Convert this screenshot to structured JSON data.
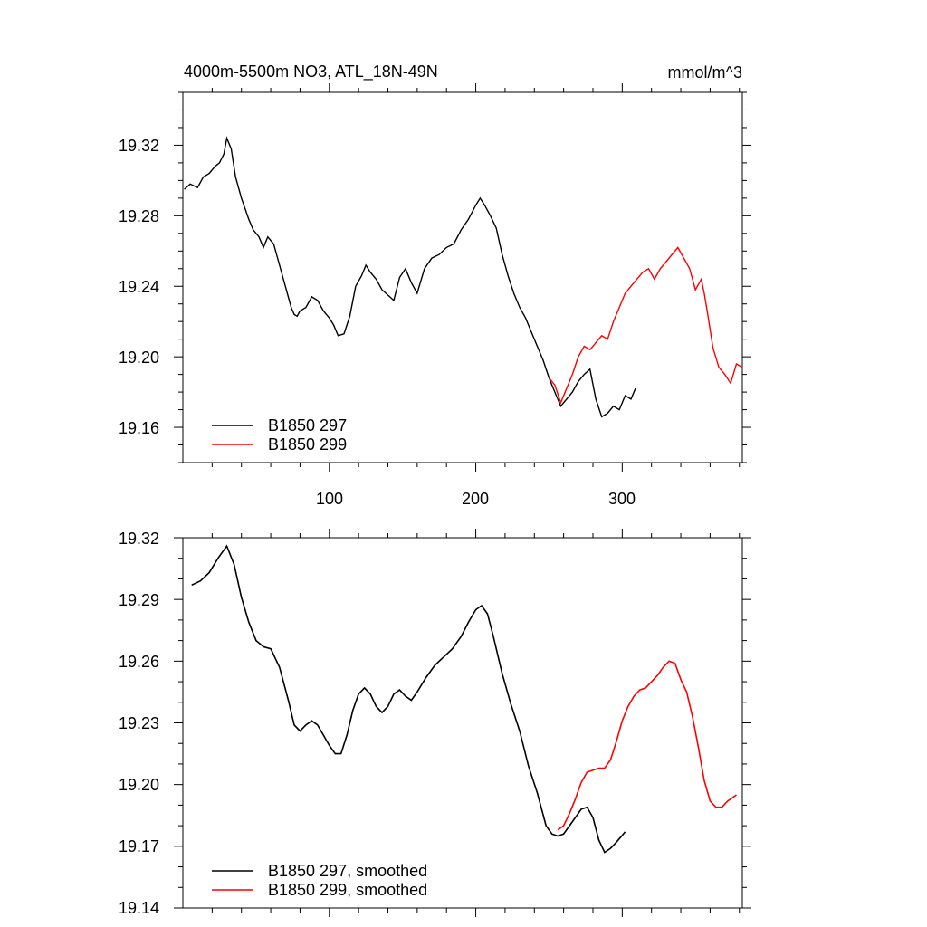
{
  "top": {
    "title_left": "4000m-5500m NO3, ATL_18N-49N",
    "title_right": "mmol/m^3",
    "yticks": [
      "19.16",
      "19.20",
      "19.24",
      "19.28",
      "19.32"
    ],
    "xticks": [
      "100",
      "200",
      "300"
    ],
    "legend": [
      "B1850 297",
      "B1850 299"
    ]
  },
  "bottom": {
    "yticks": [
      "19.14",
      "19.17",
      "19.20",
      "19.23",
      "19.26",
      "19.29",
      "19.32"
    ],
    "legend": [
      "B1850 297, smoothed",
      "B1850 299, smoothed"
    ]
  },
  "colors": {
    "series1": "#000000",
    "series2": "#ff0000"
  },
  "chart_data": [
    {
      "type": "line",
      "title": "4000m-5500m NO3, ATL_18N-49N",
      "units": "mmol/m^3",
      "xlim": [
        0,
        382
      ],
      "ylim": [
        19.14,
        19.35
      ],
      "series": [
        {
          "name": "B1850 297",
          "color": "#000000",
          "x": [
            1,
            5,
            10,
            14,
            18,
            22,
            25,
            28,
            30,
            33,
            36,
            40,
            45,
            48,
            52,
            55,
            58,
            62,
            66,
            70,
            74,
            76,
            78,
            80,
            84,
            88,
            92,
            96,
            100,
            103,
            106,
            110,
            114,
            118,
            122,
            125,
            128,
            132,
            136,
            140,
            144,
            148,
            152,
            156,
            160,
            165,
            170,
            175,
            180,
            185,
            190,
            195,
            200,
            203,
            206,
            210,
            214,
            218,
            222,
            226,
            230,
            234,
            238,
            242,
            246,
            250,
            254,
            258,
            262,
            266,
            270,
            274,
            278,
            282,
            286,
            290,
            294,
            298,
            302,
            306,
            309
          ],
          "y": [
            19.295,
            19.298,
            19.296,
            19.302,
            19.304,
            19.308,
            19.31,
            19.315,
            19.324,
            19.318,
            19.302,
            19.29,
            19.278,
            19.272,
            19.268,
            19.262,
            19.268,
            19.264,
            19.252,
            19.24,
            19.228,
            19.224,
            19.223,
            19.226,
            19.228,
            19.234,
            19.232,
            19.226,
            19.222,
            19.218,
            19.212,
            19.213,
            19.223,
            19.24,
            19.246,
            19.252,
            19.248,
            19.244,
            19.238,
            19.235,
            19.232,
            19.245,
            19.25,
            19.242,
            19.236,
            19.25,
            19.256,
            19.258,
            19.262,
            19.264,
            19.272,
            19.278,
            19.286,
            19.29,
            19.286,
            19.28,
            19.273,
            19.258,
            19.246,
            19.236,
            19.228,
            19.222,
            19.214,
            19.206,
            19.198,
            19.188,
            19.18,
            19.172,
            19.176,
            19.18,
            19.186,
            19.19,
            19.193,
            19.176,
            19.166,
            19.168,
            19.172,
            19.17,
            19.178,
            19.176,
            19.182
          ]
        },
        {
          "name": "B1850 299",
          "color": "#ff0000",
          "x": [
            250,
            254,
            258,
            262,
            266,
            270,
            274,
            278,
            282,
            286,
            290,
            294,
            298,
            302,
            306,
            310,
            314,
            318,
            322,
            326,
            330,
            334,
            338,
            342,
            346,
            350,
            354,
            356,
            358,
            362,
            366,
            370,
            374,
            378,
            382
          ],
          "y": [
            19.188,
            19.184,
            19.174,
            19.182,
            19.19,
            19.2,
            19.206,
            19.204,
            19.208,
            19.212,
            19.21,
            19.22,
            19.228,
            19.236,
            19.24,
            19.244,
            19.248,
            19.25,
            19.244,
            19.25,
            19.254,
            19.258,
            19.262,
            19.256,
            19.25,
            19.238,
            19.244,
            19.236,
            19.226,
            19.205,
            19.194,
            19.19,
            19.185,
            19.196,
            19.194
          ]
        }
      ]
    },
    {
      "type": "line",
      "xlim": [
        0,
        382
      ],
      "ylim": [
        19.14,
        19.32
      ],
      "series": [
        {
          "name": "B1850 297, smoothed",
          "color": "#000000",
          "x": [
            6,
            12,
            18,
            24,
            30,
            35,
            40,
            45,
            50,
            55,
            60,
            66,
            72,
            76,
            80,
            84,
            88,
            92,
            96,
            100,
            104,
            108,
            112,
            116,
            120,
            124,
            128,
            132,
            136,
            140,
            144,
            148,
            152,
            156,
            160,
            166,
            172,
            178,
            184,
            190,
            195,
            200,
            204,
            208,
            212,
            218,
            224,
            230,
            236,
            242,
            248,
            252,
            256,
            260,
            264,
            268,
            272,
            276,
            280,
            284,
            288,
            292,
            296,
            302
          ],
          "y": [
            19.297,
            19.299,
            19.303,
            19.31,
            19.316,
            19.307,
            19.291,
            19.279,
            19.27,
            19.267,
            19.266,
            19.257,
            19.241,
            19.229,
            19.226,
            19.229,
            19.231,
            19.229,
            19.224,
            19.219,
            19.215,
            19.215,
            19.224,
            19.236,
            19.244,
            19.247,
            19.244,
            19.238,
            19.235,
            19.238,
            19.244,
            19.246,
            19.243,
            19.241,
            19.245,
            19.252,
            19.258,
            19.262,
            19.266,
            19.272,
            19.279,
            19.285,
            19.287,
            19.283,
            19.272,
            19.254,
            19.239,
            19.226,
            19.209,
            19.196,
            19.18,
            19.176,
            19.175,
            19.176,
            19.18,
            19.184,
            19.188,
            19.189,
            19.184,
            19.173,
            19.167,
            19.169,
            19.172,
            19.177
          ]
        },
        {
          "name": "B1850 299, smoothed",
          "color": "#ff0000",
          "x": [
            256,
            260,
            264,
            268,
            272,
            276,
            280,
            284,
            288,
            292,
            296,
            300,
            304,
            308,
            312,
            316,
            320,
            324,
            328,
            332,
            336,
            340,
            344,
            348,
            352,
            356,
            360,
            364,
            368,
            372,
            376,
            378
          ],
          "y": [
            19.178,
            19.18,
            19.186,
            19.193,
            19.201,
            19.206,
            19.207,
            19.208,
            19.208,
            19.212,
            19.221,
            19.231,
            19.238,
            19.243,
            19.246,
            19.247,
            19.25,
            19.253,
            19.257,
            19.26,
            19.259,
            19.251,
            19.245,
            19.233,
            19.218,
            19.202,
            19.192,
            19.189,
            19.189,
            19.192,
            19.194,
            19.195
          ]
        }
      ]
    }
  ]
}
